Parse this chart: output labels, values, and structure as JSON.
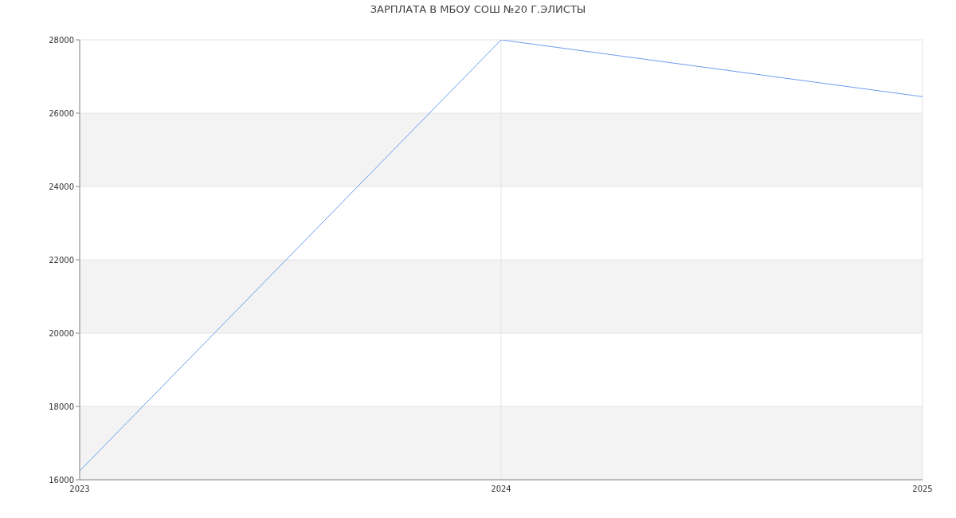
{
  "chart_data": {
    "type": "line",
    "title": "ЗАРПЛАТА В МБОУ СОШ №20 Г.ЭЛИСТЫ",
    "x": [
      2023,
      2024,
      2025
    ],
    "series": [
      {
        "color": "#6d9cf0",
        "values": [
          16240,
          28000,
          26450
        ]
      }
    ],
    "xlim": [
      2023,
      2025
    ],
    "xticks": [
      2023,
      2024,
      2025
    ],
    "ylim": [
      16000,
      28000
    ],
    "yticks": [
      16000,
      18000,
      20000,
      22000,
      24000,
      26000,
      28000
    ],
    "grid": true,
    "marker": "none",
    "line_style": "solid"
  }
}
